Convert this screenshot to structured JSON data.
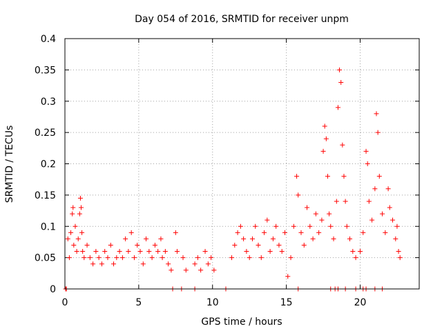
{
  "chart_data": {
    "type": "scatter",
    "title": "Day 054 of 2016, SRMTID for receiver unpm",
    "xlabel": "GPS time / hours",
    "ylabel": "SRMTID / TECUs",
    "xlim": [
      0,
      24
    ],
    "ylim": [
      0,
      0.4
    ],
    "x_ticks": [
      0,
      5,
      10,
      15,
      20
    ],
    "y_ticks": [
      0,
      0.05,
      0.1,
      0.15,
      0.2,
      0.25,
      0.3,
      0.35,
      0.4
    ],
    "x_tick_labels": [
      "0",
      "5",
      "10",
      "15",
      "20"
    ],
    "y_tick_labels": [
      "0",
      "0.05",
      "0.1",
      "0.15",
      "0.2",
      "0.25",
      "0.3",
      "0.35",
      "0.4"
    ],
    "grid": true,
    "marker": "+",
    "color": "#ff0000",
    "series": [
      {
        "name": "SRMTID",
        "points": [
          [
            0.05,
            0.0
          ],
          [
            0.2,
            0.08
          ],
          [
            0.3,
            0.05
          ],
          [
            0.4,
            0.09
          ],
          [
            0.5,
            0.12
          ],
          [
            0.55,
            0.13
          ],
          [
            0.6,
            0.07
          ],
          [
            0.7,
            0.1
          ],
          [
            0.8,
            0.06
          ],
          [
            0.9,
            0.08
          ],
          [
            1.0,
            0.12
          ],
          [
            1.05,
            0.145
          ],
          [
            1.1,
            0.13
          ],
          [
            1.15,
            0.09
          ],
          [
            1.2,
            0.06
          ],
          [
            1.3,
            0.05
          ],
          [
            1.5,
            0.07
          ],
          [
            1.7,
            0.05
          ],
          [
            1.9,
            0.04
          ],
          [
            2.1,
            0.06
          ],
          [
            2.3,
            0.05
          ],
          [
            2.5,
            0.04
          ],
          [
            2.7,
            0.06
          ],
          [
            2.9,
            0.05
          ],
          [
            3.1,
            0.07
          ],
          [
            3.3,
            0.04
          ],
          [
            3.5,
            0.05
          ],
          [
            3.7,
            0.06
          ],
          [
            3.9,
            0.05
          ],
          [
            4.1,
            0.08
          ],
          [
            4.3,
            0.06
          ],
          [
            4.5,
            0.09
          ],
          [
            4.7,
            0.05
          ],
          [
            4.9,
            0.07
          ],
          [
            5.1,
            0.06
          ],
          [
            5.3,
            0.04
          ],
          [
            5.5,
            0.08
          ],
          [
            5.7,
            0.06
          ],
          [
            5.9,
            0.05
          ],
          [
            6.1,
            0.07
          ],
          [
            6.3,
            0.06
          ],
          [
            6.5,
            0.08
          ],
          [
            6.6,
            0.05
          ],
          [
            6.8,
            0.06
          ],
          [
            7.0,
            0.04
          ],
          [
            7.2,
            0.03
          ],
          [
            7.5,
            0.09
          ],
          [
            7.6,
            0.06
          ],
          [
            8.0,
            0.05
          ],
          [
            8.2,
            0.03
          ],
          [
            8.8,
            0.04
          ],
          [
            9.0,
            0.05
          ],
          [
            9.2,
            0.03
          ],
          [
            9.5,
            0.06
          ],
          [
            9.7,
            0.04
          ],
          [
            9.9,
            0.05
          ],
          [
            10.1,
            0.03
          ],
          [
            11.3,
            0.05
          ],
          [
            11.5,
            0.07
          ],
          [
            11.7,
            0.09
          ],
          [
            11.9,
            0.1
          ],
          [
            12.1,
            0.08
          ],
          [
            12.3,
            0.06
          ],
          [
            12.5,
            0.05
          ],
          [
            12.7,
            0.08
          ],
          [
            12.9,
            0.1
          ],
          [
            13.1,
            0.07
          ],
          [
            13.3,
            0.05
          ],
          [
            13.5,
            0.09
          ],
          [
            13.7,
            0.11
          ],
          [
            13.9,
            0.06
          ],
          [
            14.1,
            0.08
          ],
          [
            14.3,
            0.1
          ],
          [
            14.5,
            0.07
          ],
          [
            14.7,
            0.06
          ],
          [
            14.9,
            0.09
          ],
          [
            15.1,
            0.02
          ],
          [
            15.3,
            0.05
          ],
          [
            15.5,
            0.1
          ],
          [
            15.7,
            0.18
          ],
          [
            15.8,
            0.15
          ],
          [
            16.0,
            0.09
          ],
          [
            16.2,
            0.07
          ],
          [
            16.4,
            0.13
          ],
          [
            16.6,
            0.1
          ],
          [
            16.8,
            0.08
          ],
          [
            17.0,
            0.12
          ],
          [
            17.2,
            0.09
          ],
          [
            17.4,
            0.11
          ],
          [
            17.5,
            0.22
          ],
          [
            17.6,
            0.26
          ],
          [
            17.7,
            0.24
          ],
          [
            17.8,
            0.18
          ],
          [
            17.9,
            0.12
          ],
          [
            18.0,
            0.1
          ],
          [
            18.2,
            0.08
          ],
          [
            18.4,
            0.14
          ],
          [
            18.5,
            0.29
          ],
          [
            18.6,
            0.35
          ],
          [
            18.7,
            0.33
          ],
          [
            18.8,
            0.23
          ],
          [
            18.9,
            0.18
          ],
          [
            19.0,
            0.14
          ],
          [
            19.1,
            0.1
          ],
          [
            19.3,
            0.08
          ],
          [
            19.5,
            0.06
          ],
          [
            19.7,
            0.05
          ],
          [
            20.0,
            0.06
          ],
          [
            20.2,
            0.09
          ],
          [
            20.4,
            0.22
          ],
          [
            20.5,
            0.2
          ],
          [
            20.6,
            0.14
          ],
          [
            20.8,
            0.11
          ],
          [
            21.0,
            0.16
          ],
          [
            21.1,
            0.28
          ],
          [
            21.2,
            0.25
          ],
          [
            21.3,
            0.18
          ],
          [
            21.5,
            0.12
          ],
          [
            21.7,
            0.09
          ],
          [
            21.9,
            0.16
          ],
          [
            22.0,
            0.13
          ],
          [
            22.2,
            0.11
          ],
          [
            22.4,
            0.08
          ],
          [
            22.5,
            0.1
          ],
          [
            22.6,
            0.06
          ],
          [
            22.7,
            0.05
          ],
          [
            0.1,
            0.0
          ],
          [
            7.3,
            0.0
          ],
          [
            7.9,
            0.0
          ],
          [
            8.8,
            0.0
          ],
          [
            10.9,
            0.0
          ],
          [
            15.8,
            0.0
          ],
          [
            18.0,
            0.0
          ],
          [
            18.3,
            0.0
          ],
          [
            18.5,
            0.0
          ],
          [
            19.0,
            0.0
          ],
          [
            19.7,
            0.0
          ],
          [
            20.2,
            0.0
          ],
          [
            20.4,
            0.0
          ],
          [
            21.0,
            0.0
          ],
          [
            21.5,
            0.0
          ]
        ]
      }
    ]
  }
}
